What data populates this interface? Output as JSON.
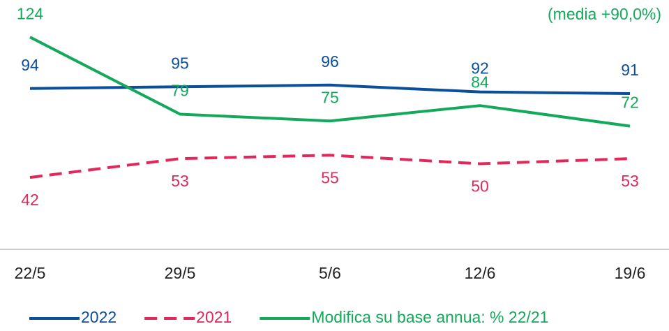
{
  "chart_data": {
    "type": "line",
    "annotation": "(media +90,0%)",
    "categories": [
      "22/5",
      "29/5",
      "5/6",
      "12/6",
      "19/6"
    ],
    "ylim": [
      0,
      140
    ],
    "series": [
      {
        "name": "2022",
        "color": "#0b4f9c",
        "dash": false,
        "label_pos": "above",
        "values": [
          94,
          95,
          96,
          92,
          91
        ]
      },
      {
        "name": "2021",
        "color": "#e2285a",
        "dash": true,
        "label_pos": "below",
        "values": [
          42,
          53,
          55,
          50,
          53
        ]
      },
      {
        "name": "Modifica su base annua: % 22/21",
        "color": "#13a85a",
        "dash": false,
        "label_pos": "above",
        "values": [
          124,
          79,
          75,
          84,
          72
        ]
      }
    ]
  }
}
